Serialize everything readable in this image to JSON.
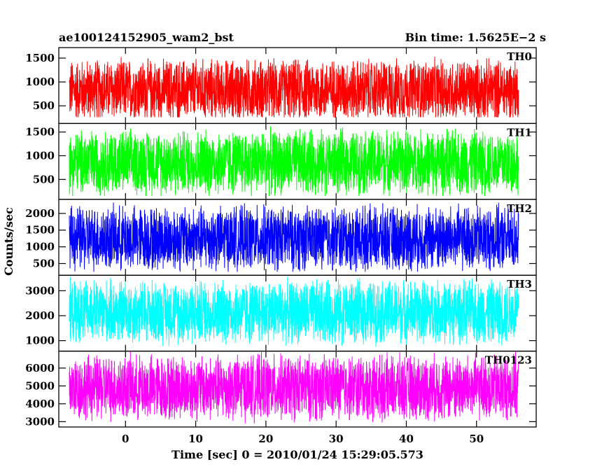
{
  "chart_data": {
    "type": "line",
    "title": "ae100124152905_wam2_bst",
    "subtitle": "Bin time: 1.5625E−2 s",
    "xlabel": "Time [sec] 0 = 2010/01/24 15:29:05.573",
    "ylabel": "Counts/sec",
    "xlim": [
      -9.5,
      58.5
    ],
    "x_range_data": [
      -8,
      56
    ],
    "bin_time": 0.015625,
    "xticks": [
      0,
      10,
      20,
      30,
      40,
      50
    ],
    "xtick_labels": [
      "0",
      "10",
      "20",
      "30",
      "40",
      "50"
    ],
    "grid": false,
    "legend": "none",
    "panels": [
      {
        "name": "TH0",
        "color": "#ff0000",
        "ylim": [
          130,
          1720
        ],
        "yticks": [
          500,
          1000,
          1500
        ],
        "ytick_labels": [
          "500",
          "1000",
          "1500"
        ],
        "mean": 830,
        "low": 260,
        "high": 1700
      },
      {
        "name": "TH1",
        "color": "#00ff00",
        "ylim": [
          80,
          1680
        ],
        "yticks": [
          500,
          1000,
          1500
        ],
        "ytick_labels": [
          "500",
          "1000",
          "1500"
        ],
        "mean": 860,
        "low": 150,
        "high": 1680
      },
      {
        "name": "TH2",
        "color": "#0000ff",
        "ylim": [
          150,
          2420
        ],
        "yticks": [
          500,
          1000,
          1500,
          2000
        ],
        "ytick_labels": [
          "500",
          "1000",
          "1500",
          "2000"
        ],
        "mean": 1250,
        "low": 250,
        "high": 2420
      },
      {
        "name": "TH3",
        "color": "#00ffff",
        "ylim": [
          580,
          3620
        ],
        "yticks": [
          1000,
          2000,
          3000
        ],
        "ytick_labels": [
          "1000",
          "2000",
          "3000"
        ],
        "mean": 2150,
        "low": 750,
        "high": 3600
      },
      {
        "name": "TH0123",
        "color": "#ff00ff",
        "ylim": [
          2700,
          6950
        ],
        "yticks": [
          3000,
          4000,
          5000,
          6000
        ],
        "ytick_labels": [
          "3000",
          "4000",
          "5000",
          "6000"
        ],
        "mean": 4900,
        "low": 2850,
        "high": 6950
      }
    ]
  }
}
